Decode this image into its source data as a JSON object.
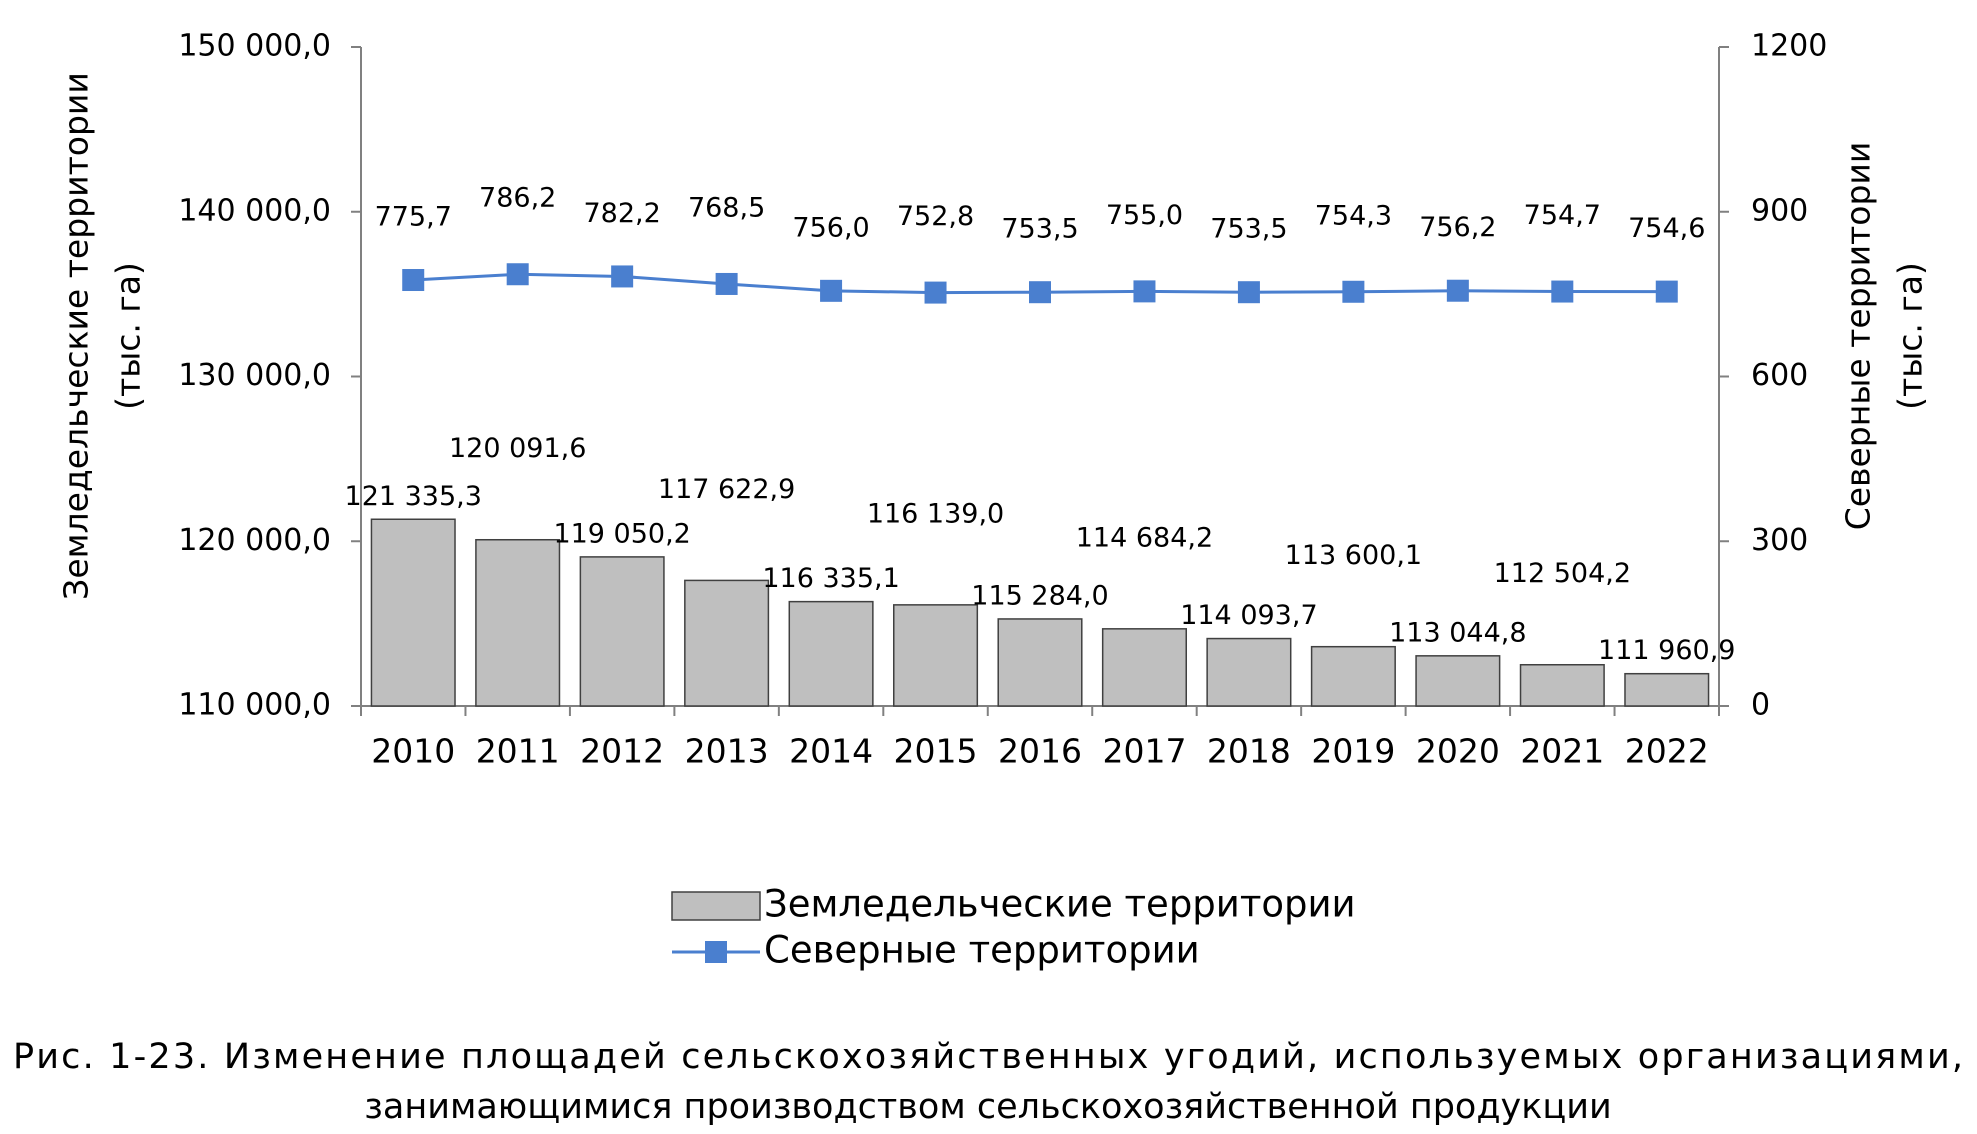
{
  "chart_data": {
    "type": "bar+line",
    "categories": [
      "2010",
      "2011",
      "2012",
      "2013",
      "2014",
      "2015",
      "2016",
      "2017",
      "2018",
      "2019",
      "2020",
      "2021",
      "2022"
    ],
    "series": [
      {
        "name": "Земледельческие территории",
        "type": "bar",
        "color": "#bfbfbf",
        "axis": "y",
        "values": [
          121335.3,
          120091.6,
          119050.2,
          117622.9,
          116335.1,
          116139.0,
          115284.0,
          114684.2,
          114093.7,
          113600.1,
          113044.8,
          112504.2,
          111960.9
        ],
        "value_labels": [
          "121 335,3",
          "120 091,6",
          "119 050,2",
          "117 622,9",
          "116 335,1",
          "116 139,0",
          "115 284,0",
          "114 684,2",
          "114 093,7",
          "113 600,1",
          "113 044,8",
          "112 504,2",
          "111 960,9"
        ]
      },
      {
        "name": "Северные территории",
        "type": "line",
        "color": "#4a7fcf",
        "axis": "y2",
        "values": [
          775.7,
          786.2,
          782.2,
          768.5,
          756.0,
          752.8,
          753.5,
          755.0,
          753.5,
          754.3,
          756.2,
          754.7,
          754.6
        ],
        "value_labels": [
          "775,7",
          "786,2",
          "782,2",
          "768,5",
          "756,0",
          "752,8",
          "753,5",
          "755,0",
          "753,5",
          "754,3",
          "756,2",
          "754,7",
          "754,6"
        ]
      }
    ],
    "ylabel": [
      "Земледельческие территории",
      "(тыс. га)"
    ],
    "y2label": [
      "Северные территории",
      "(тыс. га)"
    ],
    "ylim": [
      110000,
      150000
    ],
    "yticks": [
      {
        "value": 110000,
        "label": "110 000,0"
      },
      {
        "value": 120000,
        "label": "120 000,0"
      },
      {
        "value": 130000,
        "label": "130 000,0"
      },
      {
        "value": 140000,
        "label": "140 000,0"
      },
      {
        "value": 150000,
        "label": "150 000,0"
      }
    ],
    "y2lim": [
      0,
      1200
    ],
    "y2ticks": [
      0,
      300,
      600,
      900,
      1200
    ],
    "legend": "bottom",
    "caption": [
      "Рис. 1-23. Изменение площадей сельскохозяйственных угодий, используемых организациями,",
      "занимающимися производством сельскохозяйственной продукции"
    ]
  }
}
